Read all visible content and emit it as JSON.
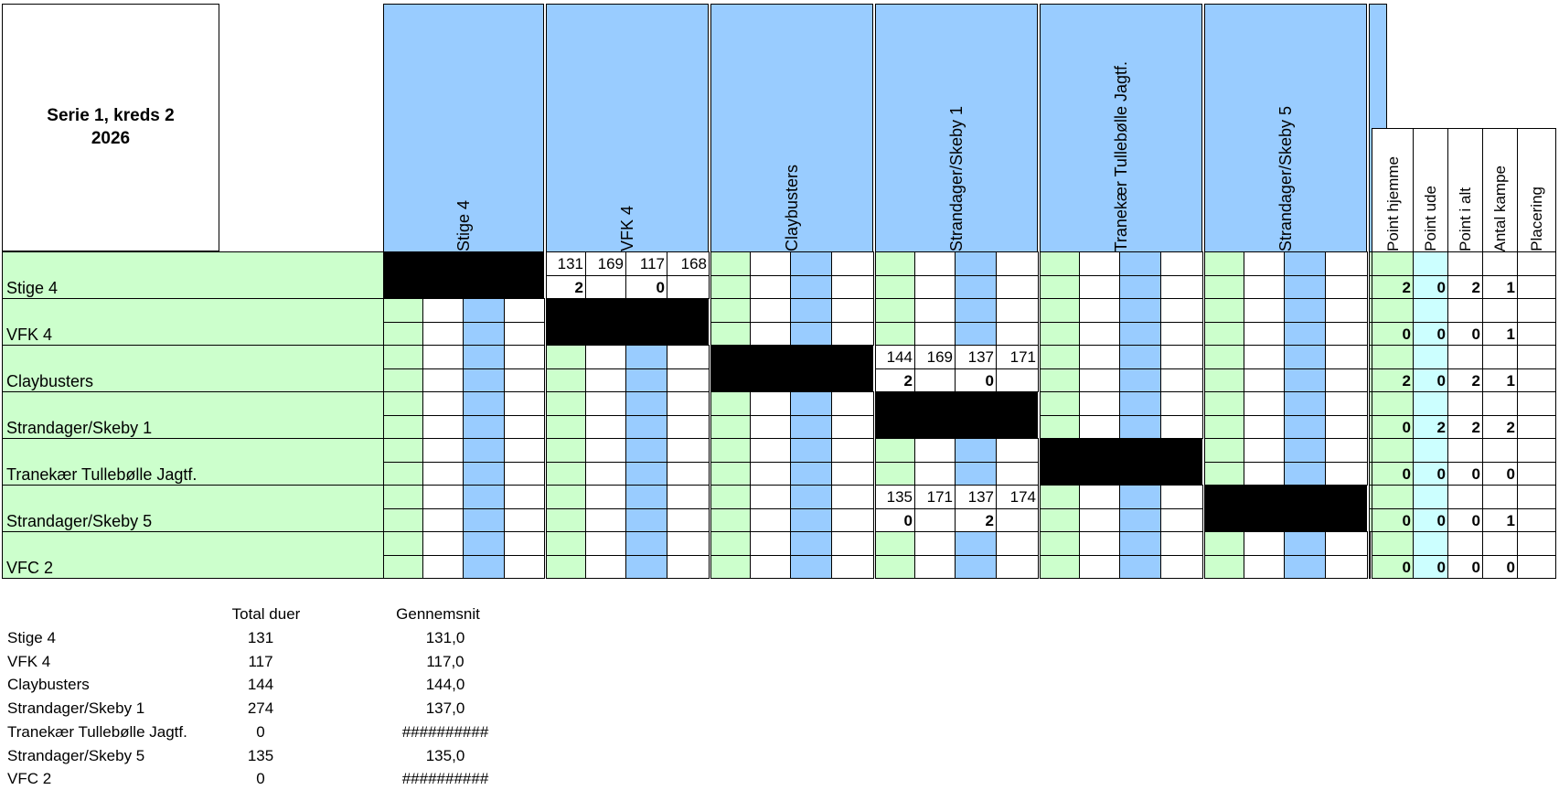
{
  "title": {
    "line1": "Serie 1, kreds 2",
    "line2": "2026"
  },
  "teams": [
    "Stige 4",
    "VFK 4",
    "Claybusters",
    "Strandager/Skeby 1",
    "Tranekær Tullebølle Jagtf.",
    "Strandager/Skeby 5",
    "VFC 2"
  ],
  "summary_headers": [
    "Point hjemme",
    "Point ude",
    "Point i alt",
    "Antal kampe",
    "Placering"
  ],
  "matrix_cells": [
    {
      "r": 0,
      "c": 1,
      "top": [
        "131",
        "169",
        "117",
        "168"
      ],
      "bottom": [
        "2",
        "",
        "0",
        ""
      ]
    },
    {
      "r": 2,
      "c": 3,
      "top": [
        "144",
        "169",
        "137",
        "171"
      ],
      "bottom": [
        "2",
        "",
        "0",
        ""
      ]
    },
    {
      "r": 5,
      "c": 3,
      "top": [
        "135",
        "171",
        "137",
        "174"
      ],
      "bottom": [
        "0",
        "",
        "2",
        ""
      ]
    }
  ],
  "summary_values": [
    [
      "2",
      "0",
      "2",
      "1",
      ""
    ],
    [
      "0",
      "0",
      "0",
      "1",
      ""
    ],
    [
      "2",
      "0",
      "2",
      "1",
      ""
    ],
    [
      "0",
      "2",
      "2",
      "2",
      ""
    ],
    [
      "0",
      "0",
      "0",
      "0",
      ""
    ],
    [
      "0",
      "0",
      "0",
      "1",
      ""
    ],
    [
      "0",
      "0",
      "0",
      "0",
      ""
    ]
  ],
  "stats": {
    "headers": [
      "Total duer",
      "Gennemsnit"
    ],
    "rows": [
      {
        "team": "Stige 4",
        "total": "131",
        "avg": "131,0"
      },
      {
        "team": "VFK 4",
        "total": "117",
        "avg": "117,0"
      },
      {
        "team": "Claybusters",
        "total": "144",
        "avg": "144,0"
      },
      {
        "team": "Strandager/Skeby 1",
        "total": "274",
        "avg": "137,0"
      },
      {
        "team": "Tranekær Tullebølle Jagtf.",
        "total": "0",
        "avg": "##########"
      },
      {
        "team": "Strandager/Skeby 5",
        "total": "135",
        "avg": "135,0"
      },
      {
        "team": "VFC 2",
        "total": "0",
        "avg": "##########"
      }
    ]
  },
  "colors": {
    "team_green": "#ccffcc",
    "header_blue": "#99ccff",
    "away_cyan": "#ccffff",
    "blocked": "#000000"
  }
}
